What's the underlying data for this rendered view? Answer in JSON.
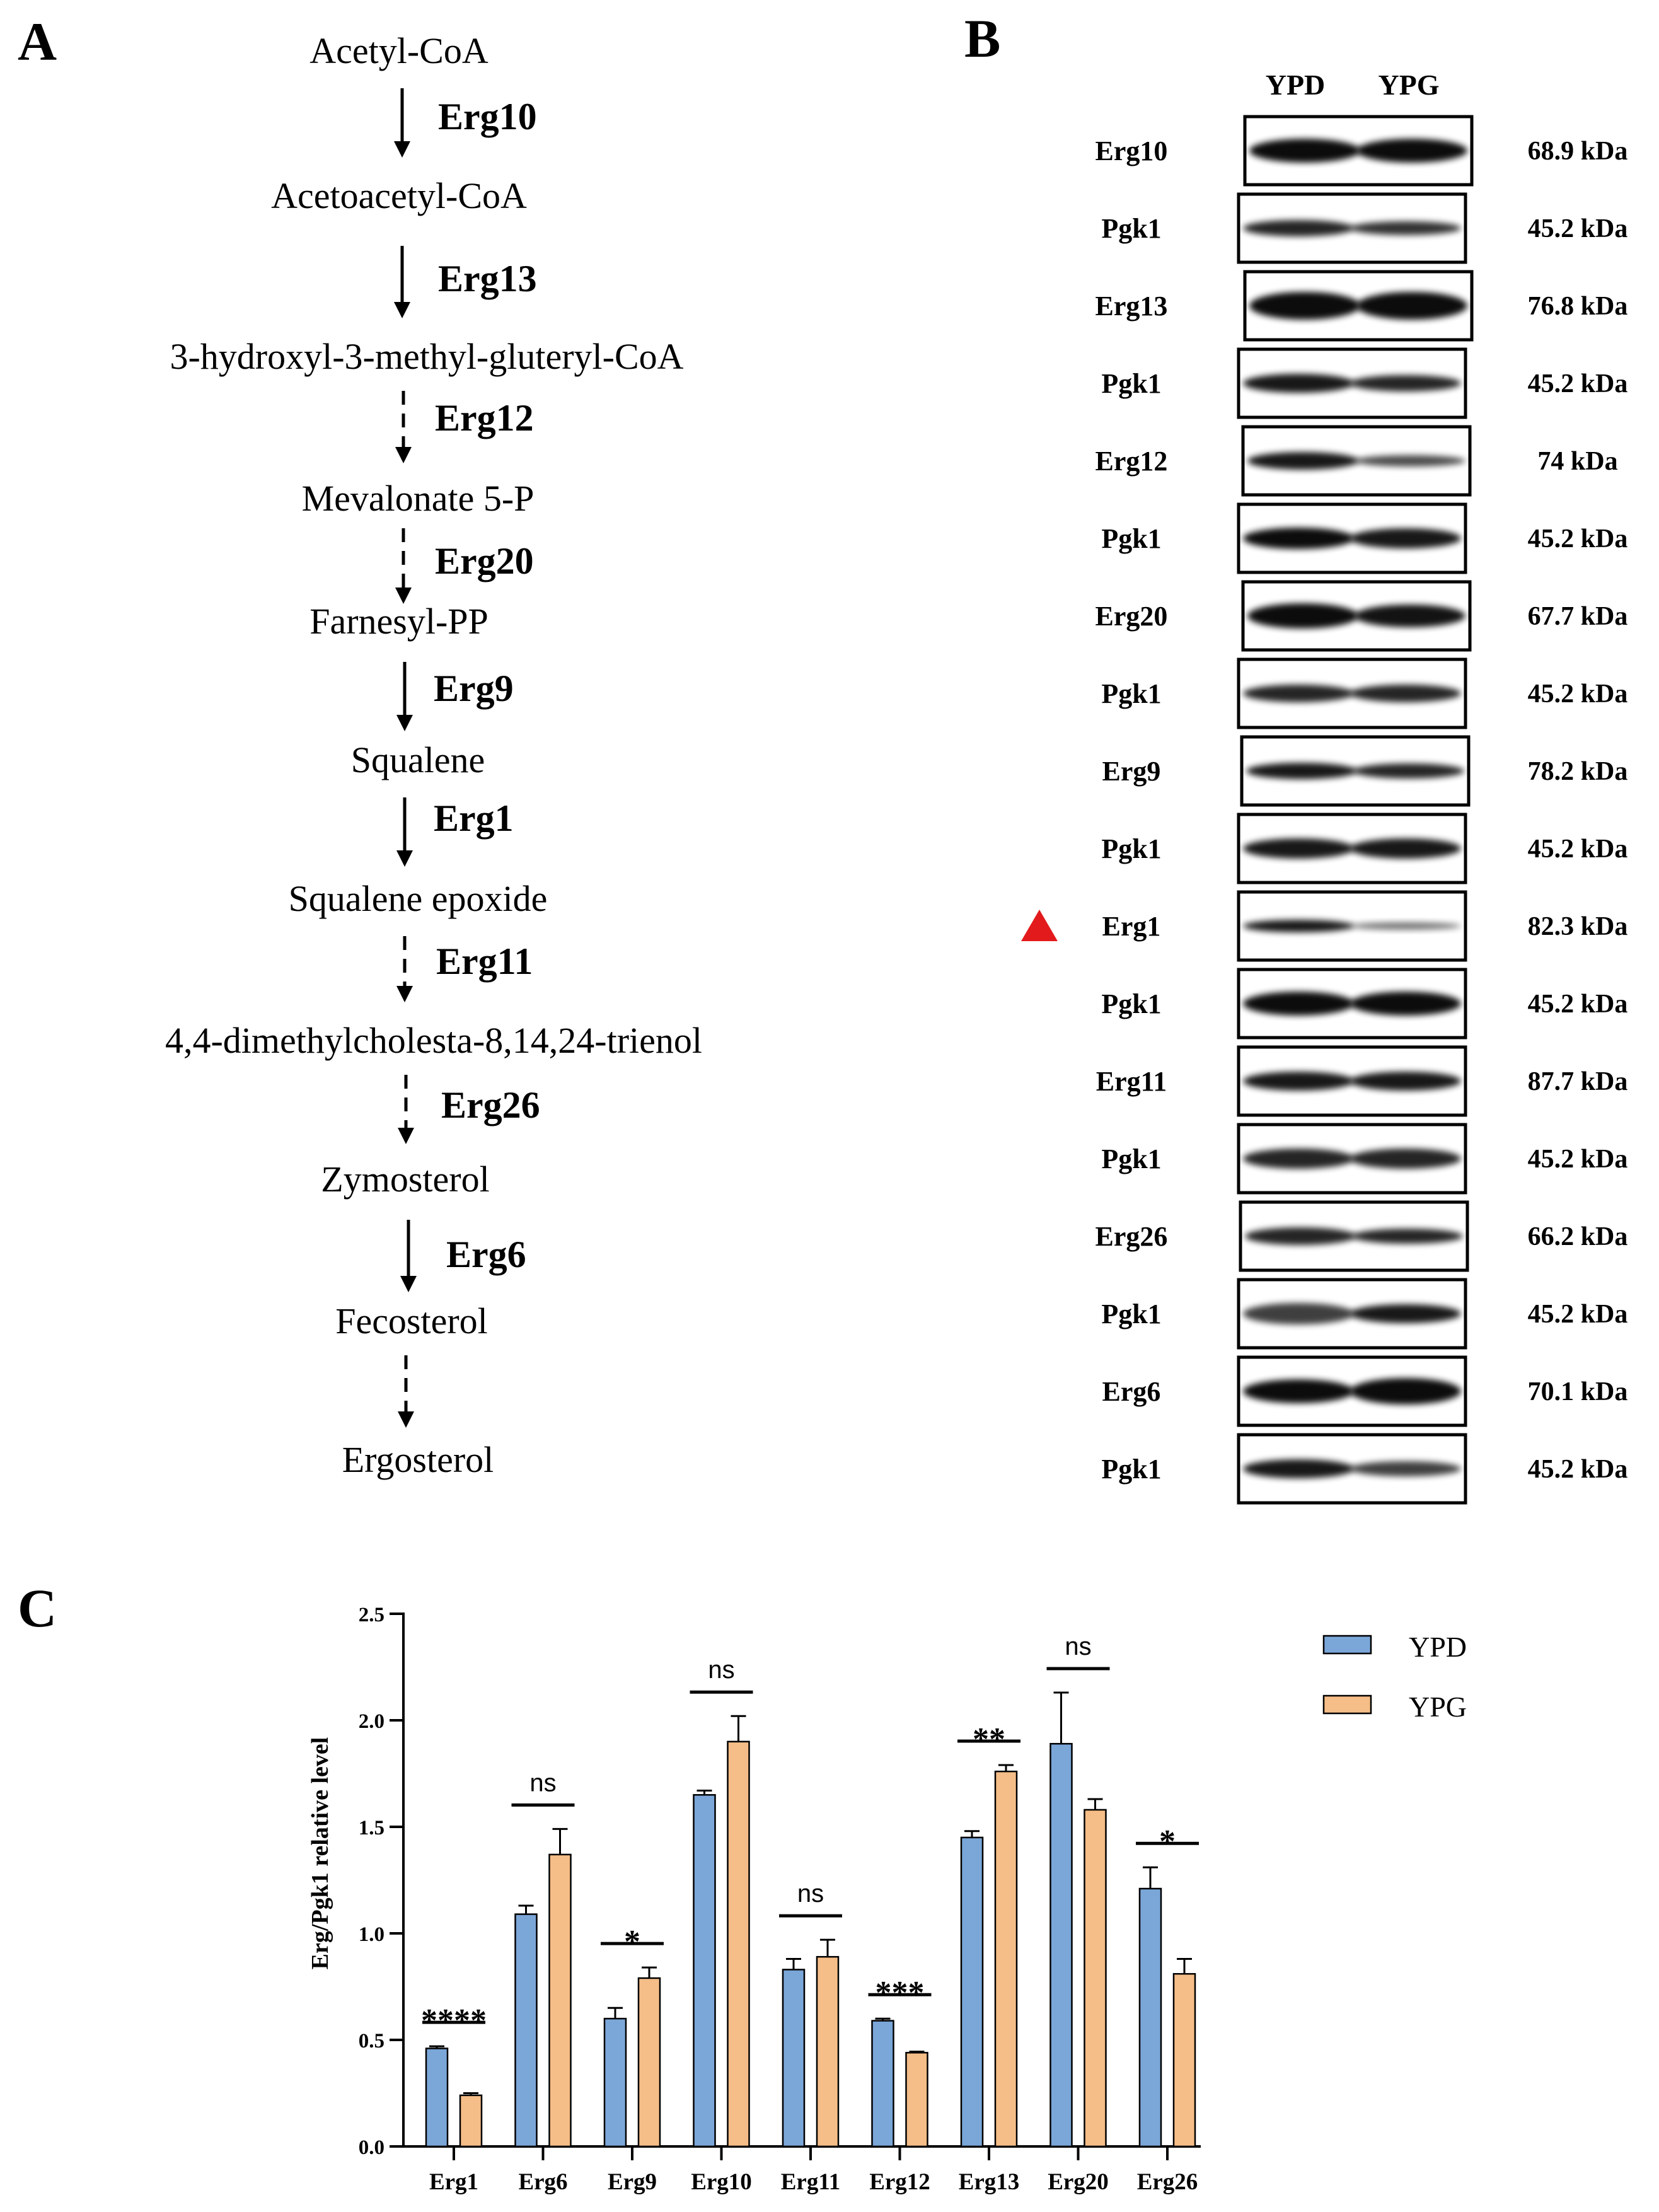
{
  "panels": {
    "a": "A",
    "b": "B",
    "c": "C"
  },
  "pathway": {
    "metabolites": [
      "Acetyl-CoA",
      "Acetoacetyl-CoA",
      "3-hydroxyl-3-methyl-gluteryl-CoA",
      "Mevalonate 5-P",
      "Farnesyl-PP",
      "Squalene",
      "Squalene epoxide",
      "4,4-dimethylcholesta-8,14,24-trienol",
      "Zymosterol",
      "Fecosterol",
      "Ergosterol"
    ],
    "steps": [
      {
        "enzyme": "Erg10",
        "style": "solid"
      },
      {
        "enzyme": "Erg13",
        "style": "solid"
      },
      {
        "enzyme": "Erg12",
        "style": "dashed"
      },
      {
        "enzyme": "Erg20",
        "style": "dashed"
      },
      {
        "enzyme": "Erg9",
        "style": "solid"
      },
      {
        "enzyme": "Erg1",
        "style": "solid"
      },
      {
        "enzyme": "Erg11",
        "style": "dashed"
      },
      {
        "enzyme": "Erg26",
        "style": "dashed"
      },
      {
        "enzyme": "Erg6",
        "style": "solid"
      },
      {
        "enzyme": "",
        "style": "dashed"
      }
    ]
  },
  "western_blot": {
    "lanes": [
      "YPD",
      "YPG"
    ],
    "marker_color": "#e31a1c",
    "marked_row": "Erg1",
    "rows": [
      {
        "label": "Erg10",
        "kda": "68.9 kDa"
      },
      {
        "label": "Pgk1",
        "kda": "45.2 kDa"
      },
      {
        "label": "Erg13",
        "kda": "76.8 kDa"
      },
      {
        "label": "Pgk1",
        "kda": "45.2 kDa"
      },
      {
        "label": "Erg12",
        "kda": "74 kDa"
      },
      {
        "label": "Pgk1",
        "kda": "45.2 kDa"
      },
      {
        "label": "Erg20",
        "kda": "67.7 kDa"
      },
      {
        "label": "Pgk1",
        "kda": "45.2 kDa"
      },
      {
        "label": "Erg9",
        "kda": "78.2 kDa"
      },
      {
        "label": "Pgk1",
        "kda": "45.2 kDa"
      },
      {
        "label": "Erg1",
        "kda": "82.3 kDa"
      },
      {
        "label": "Pgk1",
        "kda": "45.2 kDa"
      },
      {
        "label": "Erg11",
        "kda": "87.7 kDa"
      },
      {
        "label": "Pgk1",
        "kda": "45.2 kDa"
      },
      {
        "label": "Erg26",
        "kda": "66.2 kDa"
      },
      {
        "label": "Pgk1",
        "kda": "45.2 kDa"
      },
      {
        "label": "Erg6",
        "kda": "70.1 kDa"
      },
      {
        "label": "Pgk1",
        "kda": "45.2 kDa"
      }
    ]
  },
  "chart_data": {
    "type": "bar",
    "title": "",
    "xlabel": "",
    "ylabel": "Erg/Pgk1 relative level",
    "ylim": [
      0,
      2.5
    ],
    "yticks": [
      "0.0",
      "0.5",
      "1.0",
      "1.5",
      "2.0",
      "2.5"
    ],
    "categories": [
      "Erg1",
      "Erg6",
      "Erg9",
      "Erg10",
      "Erg11",
      "Erg12",
      "Erg13",
      "Erg20",
      "Erg26"
    ],
    "series": [
      {
        "name": "YPD",
        "color": "#7ba6d8",
        "values": [
          0.46,
          1.09,
          0.6,
          1.65,
          0.83,
          0.59,
          1.45,
          1.89,
          1.21
        ],
        "errors": [
          0.01,
          0.04,
          0.05,
          0.02,
          0.05,
          0.01,
          0.03,
          0.24,
          0.1
        ]
      },
      {
        "name": "YPG",
        "color": "#f5bd87",
        "values": [
          0.24,
          1.37,
          0.79,
          1.9,
          0.89,
          0.44,
          1.76,
          1.58,
          0.81
        ],
        "errors": [
          0.01,
          0.12,
          0.05,
          0.12,
          0.08,
          0.005,
          0.03,
          0.05,
          0.07
        ]
      }
    ],
    "significance": [
      "****",
      "ns",
      "*",
      "ns",
      "ns",
      "***",
      "**",
      "ns",
      "*"
    ],
    "legend_position": "top-right",
    "grid": false
  }
}
